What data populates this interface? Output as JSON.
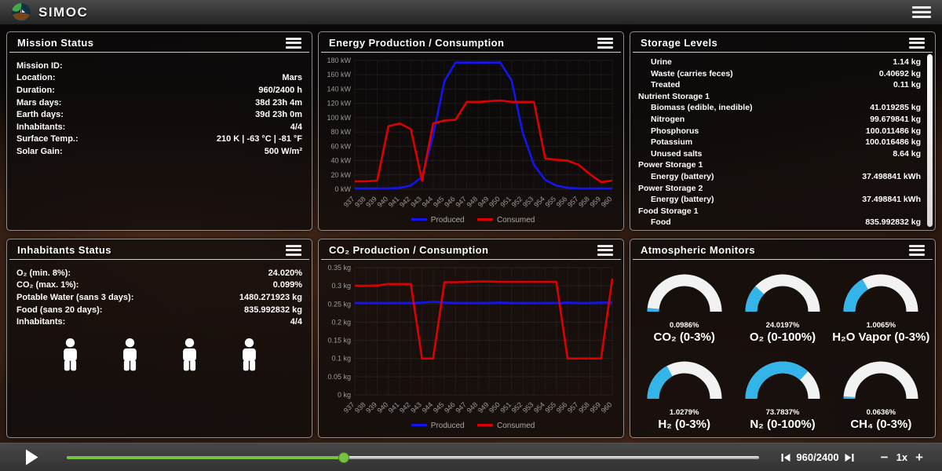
{
  "header": {
    "app_name": "SIMOC"
  },
  "colors": {
    "produced_blue": "#1414f0",
    "consumed_red": "#dd0000",
    "gauge_blue": "#33b5ea",
    "gauge_track": "#f2f2f2",
    "slider_green": "#76c043",
    "axis_text": "#9c9c9c",
    "legend_text": "#a8a8a8"
  },
  "panels": {
    "mission": {
      "title": "Mission Status",
      "rows": [
        {
          "label": "Mission ID:",
          "value": ""
        },
        {
          "label": "Location:",
          "value": "Mars"
        },
        {
          "label": "Duration:",
          "value": "960/2400 h"
        },
        {
          "label": "Mars days:",
          "value": "38d 23h 4m"
        },
        {
          "label": "Earth days:",
          "value": "39d 23h 0m"
        },
        {
          "label": "Inhabitants:",
          "value": "4/4"
        },
        {
          "label": "Surface Temp.:",
          "value": "210 K | -63 °C | -81 °F"
        },
        {
          "label": "Solar Gain:",
          "value": "500 W/m²"
        }
      ]
    },
    "energy": {
      "title": "Energy Production / Consumption"
    },
    "storage": {
      "title": "Storage Levels",
      "rows": [
        {
          "type": "item",
          "label": "Urine",
          "value": "1.14 kg"
        },
        {
          "type": "item",
          "label": "Waste (carries feces)",
          "value": "0.40692 kg"
        },
        {
          "type": "item",
          "label": "Treated",
          "value": "0.11 kg"
        },
        {
          "type": "section",
          "label": "Nutrient Storage 1"
        },
        {
          "type": "item",
          "label": "Biomass (edible, inedible)",
          "value": "41.019285 kg"
        },
        {
          "type": "item",
          "label": "Nitrogen",
          "value": "99.679841 kg"
        },
        {
          "type": "item",
          "label": "Phosphorus",
          "value": "100.011486 kg"
        },
        {
          "type": "item",
          "label": "Potassium",
          "value": "100.016486 kg"
        },
        {
          "type": "item",
          "label": "Unused salts",
          "value": "8.64 kg"
        },
        {
          "type": "section",
          "label": "Power Storage 1"
        },
        {
          "type": "item",
          "label": "Energy (battery)",
          "value": "37.498841 kWh"
        },
        {
          "type": "section",
          "label": "Power Storage 2"
        },
        {
          "type": "item",
          "label": "Energy (battery)",
          "value": "37.498841 kWh"
        },
        {
          "type": "section",
          "label": "Food Storage 1"
        },
        {
          "type": "item",
          "label": "Food",
          "value": "835.992832 kg"
        }
      ]
    },
    "inhabitants": {
      "title": "Inhabitants Status",
      "rows": [
        {
          "label": "O₂ (min. 8%):",
          "value": "24.020%"
        },
        {
          "label": "CO₂ (max. 1%):",
          "value": "0.099%"
        },
        {
          "label": "Potable Water (sans 3 days):",
          "value": "1480.271923 kg"
        },
        {
          "label": "Food (sans 20 days):",
          "value": "835.992832 kg"
        },
        {
          "label": "Inhabitants:",
          "value": "4/4"
        }
      ],
      "figure_count": 4
    },
    "co2": {
      "title": "CO₂ Production / Consumption"
    },
    "atmo": {
      "title": "Atmospheric Monitors",
      "gauges": [
        {
          "value_label": "0.0986%",
          "name": "CO₂ (0-3%)",
          "fraction": 0.033
        },
        {
          "value_label": "24.0197%",
          "name": "O₂ (0-100%)",
          "fraction": 0.24
        },
        {
          "value_label": "1.0065%",
          "name": "H₂O Vapor (0-3%)",
          "fraction": 0.336
        },
        {
          "value_label": "1.0279%",
          "name": "H₂ (0-3%)",
          "fraction": 0.343
        },
        {
          "value_label": "73.7837%",
          "name": "N₂ (0-100%)",
          "fraction": 0.738
        },
        {
          "value_label": "0.0636%",
          "name": "CH₄ (0-3%)",
          "fraction": 0.021
        }
      ]
    }
  },
  "chart_data": [
    {
      "type": "line",
      "title": "Energy Production / Consumption",
      "x": [
        937,
        938,
        939,
        940,
        941,
        942,
        943,
        944,
        945,
        946,
        947,
        948,
        949,
        950,
        951,
        952,
        953,
        954,
        955,
        956,
        957,
        958,
        959,
        960
      ],
      "series": [
        {
          "name": "Produced",
          "color": "#1414f0",
          "values": [
            1,
            1,
            1,
            1,
            2,
            5,
            17,
            75,
            151,
            177,
            177,
            177,
            177,
            177,
            152,
            79,
            34,
            13,
            5,
            2,
            1,
            1,
            1,
            1
          ]
        },
        {
          "name": "Consumed",
          "color": "#dd0000",
          "values": [
            11,
            11,
            12,
            88,
            92,
            84,
            12,
            92,
            96,
            97,
            122,
            122,
            123,
            124,
            122,
            122,
            122,
            43,
            41,
            40,
            34,
            21,
            10,
            12
          ]
        }
      ],
      "unit": "kW",
      "ylim": [
        0,
        180
      ],
      "ytick_step": 20,
      "xlabel": "",
      "ylabel": "kW",
      "grid": true,
      "legend_position": "bottom"
    },
    {
      "type": "line",
      "title": "CO₂ Production / Consumption",
      "x": [
        937,
        938,
        939,
        940,
        941,
        942,
        943,
        944,
        945,
        946,
        947,
        948,
        949,
        950,
        951,
        952,
        953,
        954,
        955,
        956,
        957,
        958,
        959,
        960
      ],
      "series": [
        {
          "name": "Produced",
          "color": "#1414f0",
          "values": [
            0.253,
            0.253,
            0.253,
            0.253,
            0.253,
            0.253,
            0.254,
            0.256,
            0.254,
            0.253,
            0.253,
            0.253,
            0.253,
            0.254,
            0.253,
            0.253,
            0.253,
            0.253,
            0.253,
            0.254,
            0.253,
            0.253,
            0.254,
            0.254
          ]
        },
        {
          "name": "Consumed",
          "color": "#dd0000",
          "values": [
            0.3,
            0.3,
            0.301,
            0.305,
            0.305,
            0.305,
            0.1,
            0.1,
            0.31,
            0.31,
            0.311,
            0.312,
            0.312,
            0.311,
            0.311,
            0.311,
            0.311,
            0.311,
            0.311,
            0.1,
            0.1,
            0.1,
            0.1,
            0.32
          ]
        }
      ],
      "unit": "kg",
      "ylim": [
        0,
        0.35
      ],
      "ytick_step": 0.05,
      "xlabel": "",
      "ylabel": "kg",
      "grid": true,
      "legend_position": "bottom"
    }
  ],
  "footer": {
    "counter": "960/2400",
    "speed_label": "1x",
    "minus": "−",
    "plus": "+",
    "progress": 0.4
  }
}
